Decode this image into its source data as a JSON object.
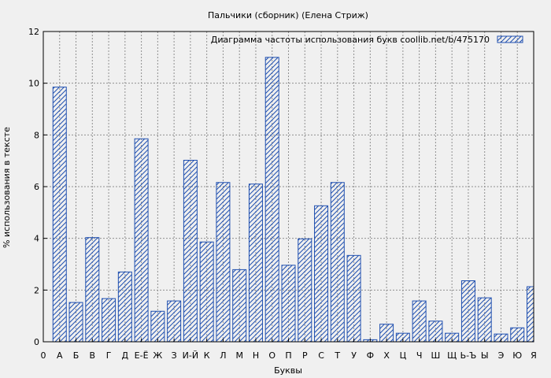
{
  "chart_data": {
    "type": "bar",
    "title": "Пальчики (сборник) (Елена Стриж)",
    "xlabel": "Буквы",
    "ylabel": "% использования в тексте",
    "legend": "Диаграмма частоты использования букв  coollib.net/b/475170",
    "legend_position": "top-right",
    "grid": true,
    "ylim": [
      0,
      12
    ],
    "yticks": [
      0,
      2,
      4,
      6,
      8,
      10,
      12
    ],
    "x_tick_labels": [
      "0",
      "А",
      "Б",
      "В",
      "Г",
      "Д",
      "Е-Ё",
      "Ж",
      "З",
      "И-Й",
      "К",
      "Л",
      "М",
      "Н",
      "О",
      "П",
      "Р",
      "С",
      "Т",
      "У",
      "Ф",
      "Х",
      "Ц",
      "Ч",
      "Ш",
      "Щ",
      "Ь-Ъ",
      "Ы",
      "Э",
      "Ю",
      "Я"
    ],
    "categories": [
      "А",
      "Б",
      "В",
      "Г",
      "Д",
      "Е-Ё",
      "Ж",
      "З",
      "И-Й",
      "К",
      "Л",
      "М",
      "Н",
      "О",
      "П",
      "Р",
      "С",
      "Т",
      "У",
      "Ф",
      "Х",
      "Ц",
      "Ч",
      "Ш",
      "Щ",
      "Ь-Ъ",
      "Ы",
      "Э",
      "Ю",
      "Я"
    ],
    "values": [
      9.85,
      1.52,
      4.03,
      1.67,
      2.7,
      7.85,
      1.18,
      1.58,
      7.02,
      3.86,
      6.16,
      2.79,
      6.1,
      11.0,
      2.96,
      3.98,
      5.26,
      6.16,
      3.34,
      0.08,
      0.68,
      0.33,
      1.58,
      0.8,
      0.33,
      2.36,
      1.7,
      0.3,
      0.54,
      2.13
    ],
    "bar_color": "#2050b0"
  }
}
